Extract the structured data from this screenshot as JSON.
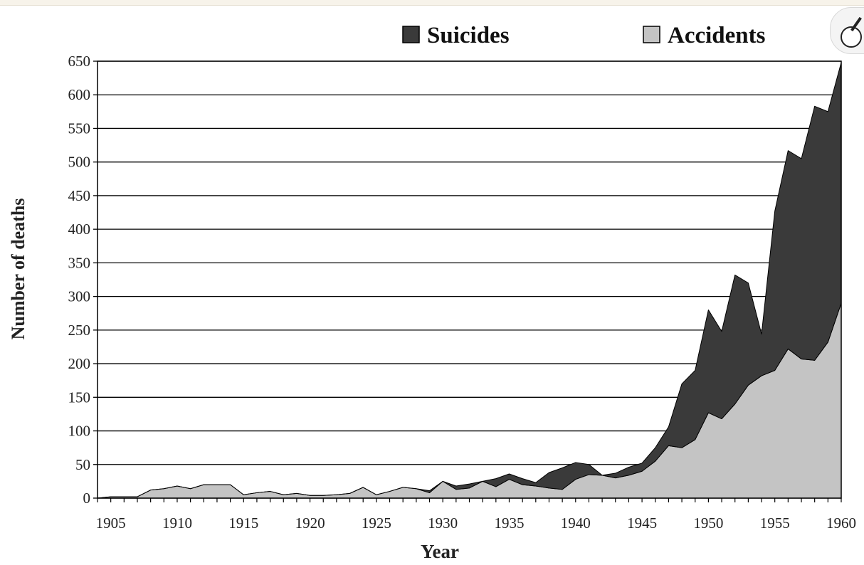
{
  "chart_data": {
    "type": "area",
    "stacked": true,
    "title": "",
    "xlabel": "Year",
    "ylabel": "Number of deaths",
    "xlim": [
      1904,
      1960
    ],
    "ylim": [
      0,
      650
    ],
    "x_ticks": [
      1905,
      1910,
      1915,
      1920,
      1925,
      1930,
      1935,
      1940,
      1945,
      1950,
      1955,
      1960
    ],
    "y_ticks": [
      0,
      50,
      100,
      150,
      200,
      250,
      300,
      350,
      400,
      450,
      500,
      550,
      600,
      650
    ],
    "grid": "horizontal",
    "legend_position": "top-right",
    "x": [
      1904,
      1905,
      1906,
      1907,
      1908,
      1909,
      1910,
      1911,
      1912,
      1913,
      1914,
      1915,
      1916,
      1917,
      1918,
      1919,
      1920,
      1921,
      1922,
      1923,
      1924,
      1925,
      1926,
      1927,
      1928,
      1929,
      1930,
      1931,
      1932,
      1933,
      1934,
      1935,
      1936,
      1937,
      1938,
      1939,
      1940,
      1941,
      1942,
      1943,
      1944,
      1945,
      1946,
      1947,
      1948,
      1949,
      1950,
      1951,
      1952,
      1953,
      1954,
      1955,
      1956,
      1957,
      1958,
      1959,
      1960
    ],
    "series": [
      {
        "name": "Accidents",
        "color": "#c4c4c4",
        "values": [
          0,
          2,
          2,
          2,
          12,
          14,
          18,
          14,
          20,
          20,
          20,
          5,
          8,
          10,
          5,
          7,
          4,
          4,
          5,
          7,
          16,
          5,
          10,
          16,
          14,
          8,
          25,
          13,
          15,
          25,
          17,
          28,
          20,
          18,
          15,
          13,
          28,
          35,
          34,
          30,
          34,
          40,
          55,
          78,
          75,
          87,
          127,
          118,
          140,
          168,
          182,
          190,
          222,
          207,
          205,
          232,
          290
        ]
      },
      {
        "name": "Suicides",
        "color": "#3a3a3a",
        "values": [
          0,
          0,
          0,
          0,
          0,
          0,
          0,
          0,
          0,
          0,
          0,
          0,
          0,
          0,
          0,
          0,
          0,
          0,
          0,
          0,
          0,
          0,
          0,
          0,
          0,
          3,
          0,
          5,
          6,
          0,
          12,
          8,
          9,
          5,
          23,
          32,
          25,
          15,
          0,
          7,
          12,
          12,
          20,
          28,
          95,
          103,
          153,
          130,
          192,
          152,
          62,
          237,
          295,
          298,
          378,
          343,
          358
        ]
      }
    ]
  }
}
